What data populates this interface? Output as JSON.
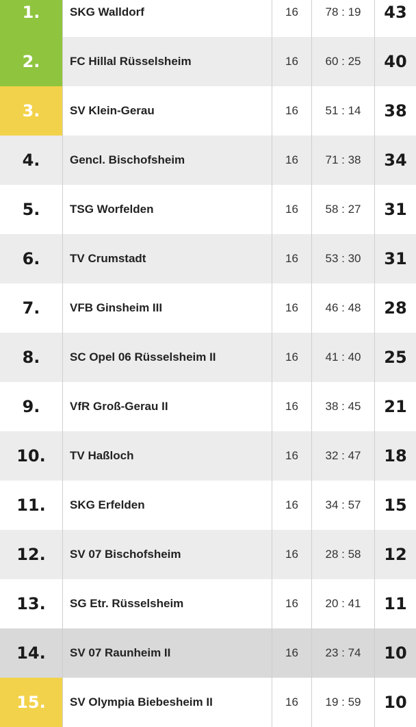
{
  "standings": [
    {
      "rank": "1.",
      "team": "SKG Walldorf",
      "played": "16",
      "goals": "78 : 19",
      "points": "43"
    },
    {
      "rank": "2.",
      "team": "FC Hillal Rüsselsheim",
      "played": "16",
      "goals": "60 : 25",
      "points": "40"
    },
    {
      "rank": "3.",
      "team": "SV Klein-Gerau",
      "played": "16",
      "goals": "51 : 14",
      "points": "38"
    },
    {
      "rank": "4.",
      "team": "Gencl. Bischofsheim",
      "played": "16",
      "goals": "71 : 38",
      "points": "34"
    },
    {
      "rank": "5.",
      "team": "TSG Worfelden",
      "played": "16",
      "goals": "58 : 27",
      "points": "31"
    },
    {
      "rank": "6.",
      "team": "TV Crumstadt",
      "played": "16",
      "goals": "53 : 30",
      "points": "31"
    },
    {
      "rank": "7.",
      "team": "VFB Ginsheim III",
      "played": "16",
      "goals": "46 : 48",
      "points": "28"
    },
    {
      "rank": "8.",
      "team": "SC Opel 06 Rüsselsheim II",
      "played": "16",
      "goals": "41 : 40",
      "points": "25"
    },
    {
      "rank": "9.",
      "team": "VfR Groß-Gerau II",
      "played": "16",
      "goals": "38 : 45",
      "points": "21"
    },
    {
      "rank": "10.",
      "team": "TV Haßloch",
      "played": "16",
      "goals": "32 : 47",
      "points": "18"
    },
    {
      "rank": "11.",
      "team": "SKG Erfelden",
      "played": "16",
      "goals": "34 : 57",
      "points": "15"
    },
    {
      "rank": "12.",
      "team": "SV 07 Bischofsheim",
      "played": "16",
      "goals": "28 : 58",
      "points": "12"
    },
    {
      "rank": "13.",
      "team": "SG Etr. Rüsselsheim",
      "played": "16",
      "goals": "20 : 41",
      "points": "11"
    },
    {
      "rank": "14.",
      "team": "SV 07 Raunheim II",
      "played": "16",
      "goals": "23 : 74",
      "points": "10"
    },
    {
      "rank": "15.",
      "team": "SV Olympia Biebesheim II",
      "played": "16",
      "goals": "19 : 59",
      "points": "10"
    }
  ],
  "colors": {
    "promotion": "#8fc43f",
    "promotion_playoff": "#f2d24a",
    "relegation_row": "#d9d9d9"
  }
}
